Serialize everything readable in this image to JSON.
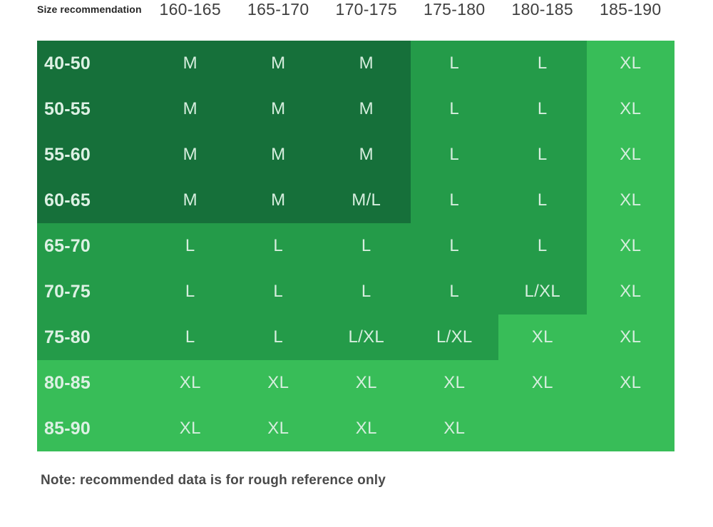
{
  "chart_data": {
    "type": "heatmap",
    "title": "Size recommendation",
    "x_categories": [
      "160-165",
      "165-170",
      "170-175",
      "175-180",
      "180-185",
      "185-190"
    ],
    "y_categories": [
      "40-50",
      "50-55",
      "55-60",
      "60-65",
      "65-70",
      "70-75",
      "75-80",
      "80-85",
      "85-90"
    ],
    "values": [
      [
        "M",
        "M",
        "M",
        "L",
        "L",
        "XL"
      ],
      [
        "M",
        "M",
        "M",
        "L",
        "L",
        "XL"
      ],
      [
        "M",
        "M",
        "M",
        "L",
        "L",
        "XL"
      ],
      [
        "M",
        "M",
        "M/L",
        "L",
        "L",
        "XL"
      ],
      [
        "L",
        "L",
        "L",
        "L",
        "L",
        "XL"
      ],
      [
        "L",
        "L",
        "L",
        "L",
        "L/XL",
        "XL"
      ],
      [
        "L",
        "L",
        "L/XL",
        "L/XL",
        "XL",
        "XL"
      ],
      [
        "XL",
        "XL",
        "XL",
        "XL",
        "XL",
        "XL"
      ],
      [
        "XL",
        "XL",
        "XL",
        "XL",
        "",
        ""
      ]
    ],
    "tones": [
      [
        "dark",
        "dark",
        "dark",
        "medium",
        "medium",
        "light"
      ],
      [
        "dark",
        "dark",
        "dark",
        "medium",
        "medium",
        "light"
      ],
      [
        "dark",
        "dark",
        "dark",
        "medium",
        "medium",
        "light"
      ],
      [
        "dark",
        "dark",
        "dark",
        "medium",
        "medium",
        "light"
      ],
      [
        "medium",
        "medium",
        "medium",
        "medium",
        "medium",
        "light"
      ],
      [
        "medium",
        "medium",
        "medium",
        "medium",
        "medium",
        "light"
      ],
      [
        "medium",
        "medium",
        "medium",
        "medium",
        "light",
        "light"
      ],
      [
        "light",
        "light",
        "light",
        "light",
        "light",
        "light"
      ],
      [
        "light",
        "light",
        "light",
        "light",
        "light",
        "light"
      ]
    ],
    "palette": {
      "dark": "#16703a",
      "medium": "#249b49",
      "light": "#38bd58"
    },
    "legend_position": "none",
    "grid": false,
    "note": "Note: recommended data is for rough reference only"
  }
}
